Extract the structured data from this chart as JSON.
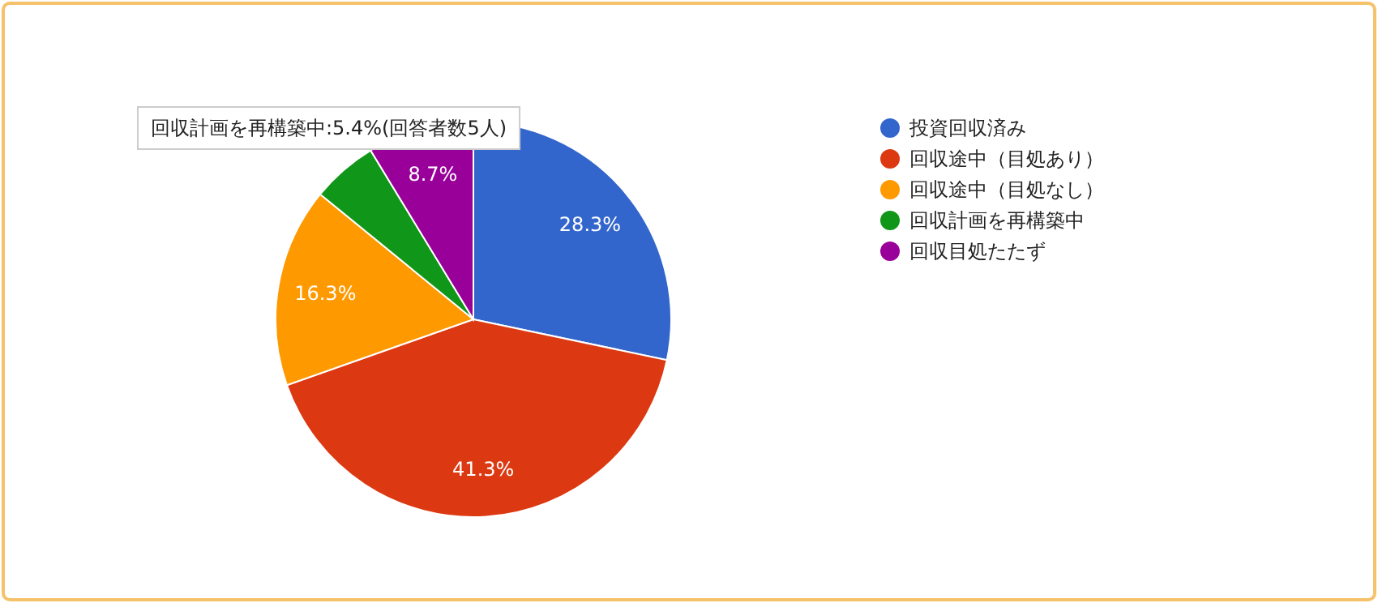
{
  "chart_data": {
    "type": "pie",
    "categories": [
      "投資回収済み",
      "回収途中（目処あり）",
      "回収途中（目処なし）",
      "回収計画を再構築中",
      "回収目処たたず"
    ],
    "values": [
      28.3,
      41.3,
      16.3,
      5.4,
      8.7
    ],
    "colors": [
      "#3366cc",
      "#dc3912",
      "#ff9900",
      "#109618",
      "#990099"
    ],
    "value_labels": [
      "28.3%",
      "41.3%",
      "16.3%",
      null,
      "8.7%"
    ],
    "legend": "right",
    "annotations": [
      "回収計画を再構築中:5.4%(回答者数5人)"
    ]
  }
}
